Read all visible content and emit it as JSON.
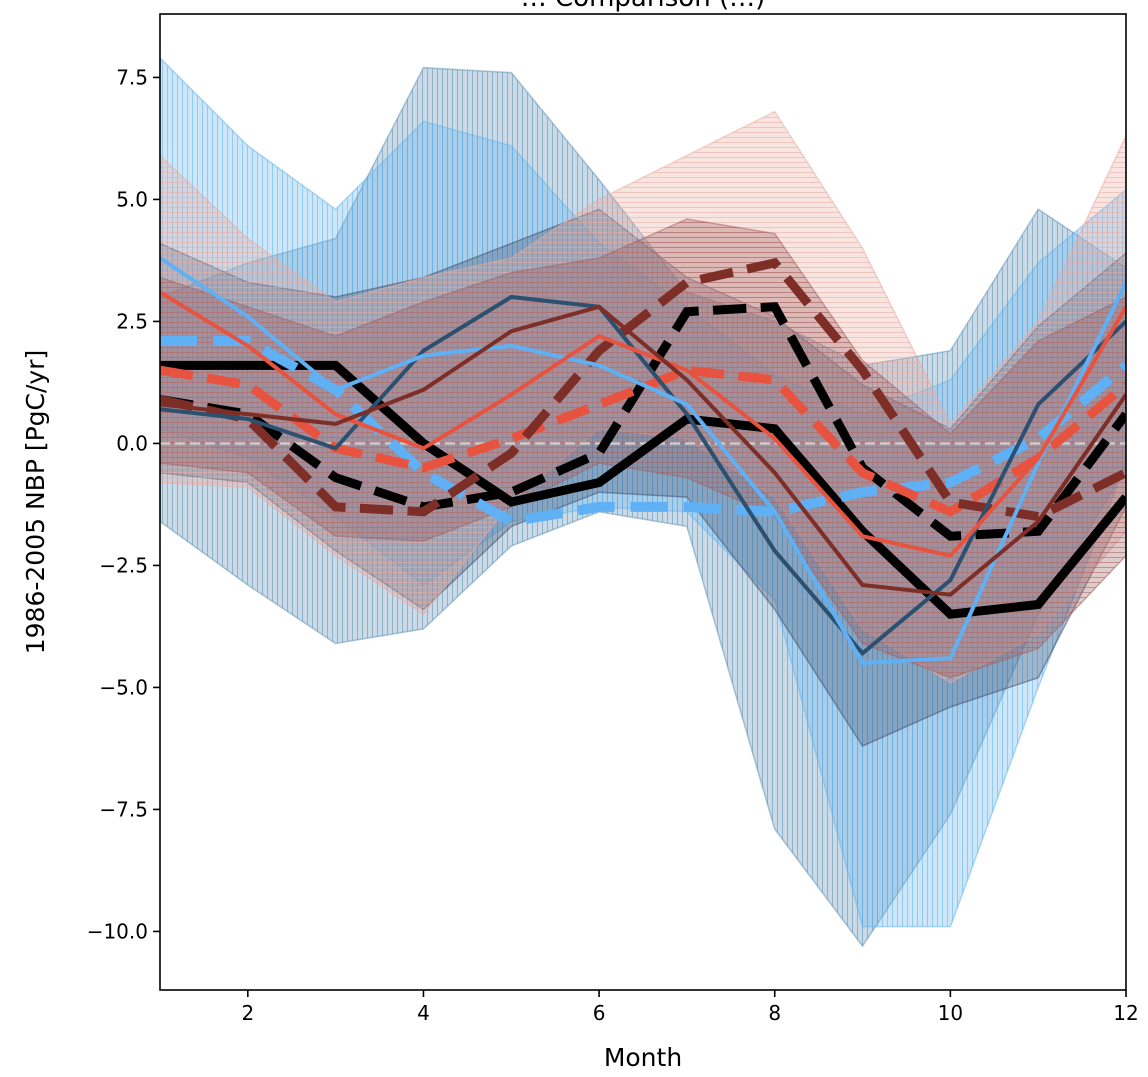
{
  "chart_data": {
    "type": "line",
    "title": "… Comparison (…)",
    "xlabel": "Month",
    "ylabel": "1986-2005 NBP  [PgC/yr]",
    "xlim": [
      1,
      12
    ],
    "ylim": [
      -11.2,
      8.8
    ],
    "x_ticks": [
      2,
      4,
      6,
      8,
      10,
      12
    ],
    "y_ticks": [
      7.5,
      5.0,
      2.5,
      0.0,
      -2.5,
      -5.0,
      -7.5,
      -10.0
    ],
    "y_tick_labels": [
      "7.5",
      "5.0",
      "2.5",
      "0.0",
      "−2.5",
      "−5.0",
      "−7.5",
      "−10.0"
    ],
    "zero_line": {
      "value": 0,
      "color": "#cccccc",
      "style": "dashed"
    },
    "grid": false,
    "x": [
      1,
      2,
      3,
      4,
      5,
      6,
      7,
      8,
      9,
      10,
      11,
      12
    ],
    "bands": [
      {
        "color": "#5b8fb3",
        "hatch": "vertical",
        "lower": [
          -1.6,
          -2.9,
          -4.1,
          -3.8,
          -2.1,
          -1.4,
          -1.7,
          -7.9,
          -10.3,
          -7.6,
          -3.5,
          -0.5
        ],
        "upper": [
          3.0,
          3.7,
          4.2,
          7.7,
          7.6,
          5.4,
          3.1,
          2.5,
          1.6,
          1.9,
          4.8,
          3.6
        ]
      },
      {
        "color": "#63b3ed",
        "hatch": "vertical",
        "lower": [
          0.3,
          -0.3,
          -1.5,
          -2.9,
          -1.6,
          -1.3,
          -1.4,
          -3.2,
          -9.9,
          -9.9,
          -5.0,
          -0.4
        ],
        "upper": [
          7.9,
          6.1,
          4.8,
          6.6,
          6.1,
          4.1,
          2.8,
          1.4,
          0.6,
          1.3,
          3.7,
          5.2
        ]
      },
      {
        "color": "#3d4a66",
        "hatch": "none",
        "lower": [
          -0.6,
          -0.8,
          -2.2,
          -3.4,
          -1.7,
          -1.0,
          -1.1,
          -3.4,
          -6.2,
          -5.4,
          -4.8,
          -1.3
        ],
        "upper": [
          4.1,
          3.3,
          3.0,
          3.4,
          4.1,
          4.8,
          3.4,
          2.6,
          1.2,
          0.3,
          2.4,
          3.9
        ]
      },
      {
        "color": "#e8aaa2",
        "hatch": "horizontal",
        "lower": [
          -0.8,
          -0.9,
          -2.3,
          -3.5,
          -1.2,
          0.3,
          0.1,
          -1.1,
          -3.8,
          -4.9,
          -3.9,
          -1.8
        ],
        "upper": [
          5.9,
          4.2,
          2.9,
          3.4,
          3.8,
          5.0,
          5.9,
          6.8,
          4.0,
          0.4,
          2.5,
          6.3
        ]
      },
      {
        "color": "#a36060",
        "hatch": "horizontal",
        "lower": [
          -0.4,
          -0.6,
          -1.9,
          -2.0,
          -1.3,
          -0.4,
          -0.7,
          -1.5,
          -4.1,
          -4.8,
          -4.2,
          -2.3
        ],
        "upper": [
          3.4,
          2.8,
          2.2,
          2.9,
          3.5,
          3.8,
          4.6,
          4.3,
          1.7,
          0.2,
          2.1,
          3.0
        ]
      }
    ],
    "series": [
      {
        "color": "#000000",
        "width": 9,
        "style": "solid",
        "values": [
          1.6,
          1.6,
          1.6,
          0.0,
          -1.2,
          -0.8,
          0.5,
          0.3,
          -1.8,
          -3.5,
          -3.3,
          -1.1
        ]
      },
      {
        "color": "#000000",
        "width": 9,
        "style": "dashed",
        "values": [
          0.9,
          0.6,
          -0.7,
          -1.3,
          -1.0,
          -0.2,
          2.7,
          2.8,
          -0.5,
          -1.9,
          -1.8,
          0.6
        ]
      },
      {
        "color": "#5fb0f5",
        "width": 10,
        "style": "dashed",
        "values": [
          2.1,
          2.1,
          1.1,
          -0.6,
          -1.6,
          -1.3,
          -1.3,
          -1.4,
          -1.0,
          -0.8,
          0.1,
          1.6
        ]
      },
      {
        "color": "#e8533f",
        "width": 9,
        "style": "dashed",
        "values": [
          1.5,
          1.2,
          -0.1,
          -0.5,
          0.1,
          0.8,
          1.5,
          1.3,
          -0.6,
          -1.4,
          -0.3,
          1.2
        ]
      },
      {
        "color": "#7d2e26",
        "width": 9,
        "style": "dashed",
        "values": [
          0.9,
          0.5,
          -1.3,
          -1.4,
          -0.2,
          1.9,
          3.3,
          3.7,
          1.5,
          -1.2,
          -1.5,
          -0.6
        ]
      },
      {
        "color": "#2b5070",
        "width": 4,
        "style": "solid",
        "values": [
          0.7,
          0.5,
          -0.1,
          1.9,
          3.0,
          2.8,
          0.6,
          -2.2,
          -4.3,
          -2.8,
          0.8,
          2.5
        ]
      },
      {
        "color": "#5fb0f5",
        "width": 4,
        "style": "solid",
        "values": [
          3.8,
          2.6,
          1.1,
          1.8,
          2.0,
          1.6,
          0.8,
          -1.4,
          -4.5,
          -4.4,
          -0.4,
          3.3
        ]
      },
      {
        "color": "#e8533f",
        "width": 4,
        "style": "solid",
        "values": [
          3.1,
          2.0,
          0.6,
          -0.1,
          1.0,
          2.2,
          1.5,
          0.1,
          -1.9,
          -2.3,
          -0.3,
          2.8
        ]
      },
      {
        "color": "#7d2e26",
        "width": 4,
        "style": "solid",
        "values": [
          0.8,
          0.6,
          0.4,
          1.1,
          2.3,
          2.8,
          1.3,
          -0.6,
          -2.9,
          -3.1,
          -1.6,
          1.0
        ]
      }
    ]
  }
}
